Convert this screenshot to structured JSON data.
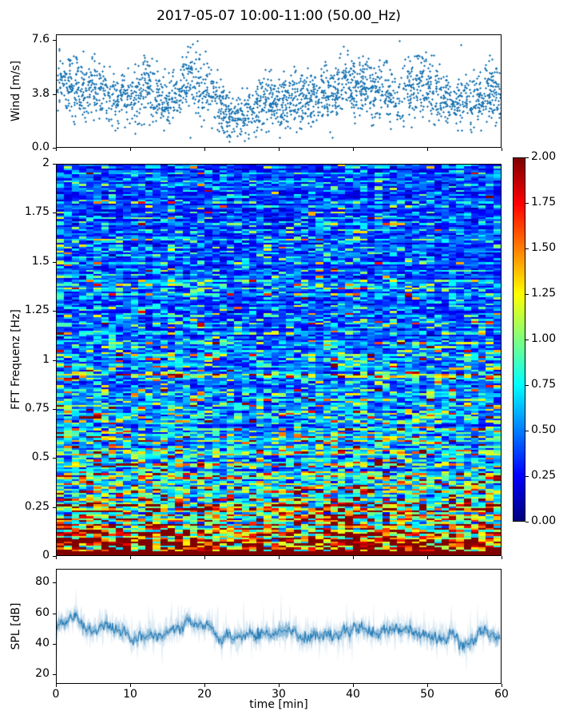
{
  "title": "2017-05-07 10:00-11:00 (50.00_Hz)",
  "colors": {
    "marker": "#1f77b4",
    "line": "#1f77b4",
    "spine": "#000000",
    "background": "#ffffff",
    "text": "#000000"
  },
  "chart_data": [
    {
      "type": "scatter",
      "panel": "wind",
      "ylabel": "Wind [m/s]",
      "xlim": [
        0,
        60
      ],
      "ylim": [
        0,
        8
      ],
      "yticks": {
        "values": [
          0.0,
          3.8,
          7.6
        ],
        "labels": [
          "0.0",
          "3.8",
          "7.6"
        ]
      },
      "xticks": {
        "values": [
          0,
          10,
          20,
          30,
          40,
          50,
          60
        ],
        "labels": []
      },
      "marker": "plus",
      "marker_color": "#1f77b4",
      "n_points": 2300,
      "noise_sd": 1.0,
      "value_clip": [
        0.35,
        7.6
      ],
      "mean_profile": {
        "x": [
          0,
          2,
          4,
          6,
          8,
          10,
          12,
          14,
          16,
          18,
          20,
          22,
          24,
          26,
          28,
          30,
          32,
          34,
          36,
          38,
          40,
          42,
          44,
          46,
          48,
          50,
          52,
          54,
          56,
          58,
          60
        ],
        "y": [
          4.6,
          4.4,
          4.2,
          4.3,
          3.4,
          3.5,
          4.4,
          3.2,
          3.3,
          5.1,
          4.4,
          3.0,
          1.8,
          2.6,
          3.3,
          3.4,
          3.5,
          3.5,
          3.8,
          4.0,
          4.5,
          4.2,
          4.0,
          3.5,
          4.4,
          4.2,
          3.6,
          3.2,
          3.1,
          4.0,
          3.7
        ]
      },
      "seed": 42
    },
    {
      "type": "heatmap",
      "panel": "spectrogram",
      "ylabel": "FFT Frequenz [Hz]",
      "xlim": [
        0,
        60
      ],
      "ylim": [
        0,
        2
      ],
      "clim": [
        0,
        2
      ],
      "colormap": "jet",
      "yticks": {
        "values": [
          0,
          0.25,
          0.5,
          0.75,
          1,
          1.25,
          1.5,
          1.75,
          2
        ],
        "labels": [
          "0",
          "0.25",
          "0.5",
          "0.75",
          "1",
          "1.25",
          "1.5",
          "1.75",
          "2"
        ]
      },
      "xticks": {
        "values": [
          0,
          10,
          20,
          30,
          40,
          50,
          60
        ],
        "labels": []
      },
      "cols": 60,
      "rows": 200,
      "freq_profile": {
        "f": [
          0,
          0.02,
          0.05,
          0.08,
          0.1,
          0.15,
          0.2,
          0.3,
          0.4,
          0.5,
          0.7,
          0.9,
          1.1,
          1.4,
          1.7,
          2.0
        ],
        "v": [
          2.3,
          2.15,
          1.85,
          1.6,
          1.5,
          1.25,
          1.05,
          0.9,
          0.8,
          0.72,
          0.62,
          0.56,
          0.5,
          0.45,
          0.4,
          0.38
        ]
      },
      "time_profile": {
        "t": [
          0,
          5,
          10,
          15,
          20,
          25,
          30,
          35,
          40,
          45,
          50,
          55,
          60
        ],
        "g": [
          1.1,
          1.05,
          0.95,
          1.05,
          1.0,
          0.85,
          0.95,
          1.0,
          1.1,
          1.0,
          1.0,
          0.95,
          1.0
        ]
      },
      "cell_noise_sigma": 0.5,
      "row_gain_sigma": 0.24,
      "solid_low_band_hz": 0.025,
      "colorbar": {
        "ticks": {
          "values": [
            0,
            0.25,
            0.5,
            0.75,
            1,
            1.25,
            1.5,
            1.75,
            2
          ],
          "labels": [
            "0.00",
            "0.25",
            "0.50",
            "0.75",
            "1.00",
            "1.25",
            "1.50",
            "1.75",
            "2.00"
          ]
        }
      },
      "seed": 7
    },
    {
      "type": "line",
      "panel": "spl",
      "ylabel": "SPL [dB]",
      "xlabel": "time [min]",
      "xlim": [
        0,
        60
      ],
      "ylim": [
        14,
        89
      ],
      "yticks": {
        "values": [
          20,
          40,
          60,
          80
        ],
        "labels": [
          "20",
          "40",
          "60",
          "80"
        ]
      },
      "xticks": {
        "values": [
          0,
          10,
          20,
          30,
          40,
          50,
          60
        ],
        "labels": [
          "0",
          "10",
          "20",
          "30",
          "40",
          "50",
          "60"
        ]
      },
      "line_color": "#1f77b4",
      "mean_profile": {
        "x": [
          0,
          2,
          4,
          6,
          8,
          10,
          12,
          14,
          16,
          18,
          20,
          22,
          24,
          26,
          28,
          30,
          32,
          34,
          36,
          38,
          40,
          42,
          44,
          46,
          48,
          50,
          52,
          54,
          56,
          58,
          60
        ],
        "y": [
          50,
          54,
          52,
          53,
          48,
          44,
          44,
          45,
          48,
          57,
          52,
          42,
          41,
          46,
          46,
          47,
          48,
          47,
          47,
          48,
          52,
          50,
          48,
          49,
          48,
          47,
          45,
          43,
          42,
          46,
          47
        ]
      },
      "seed": 99
    }
  ]
}
